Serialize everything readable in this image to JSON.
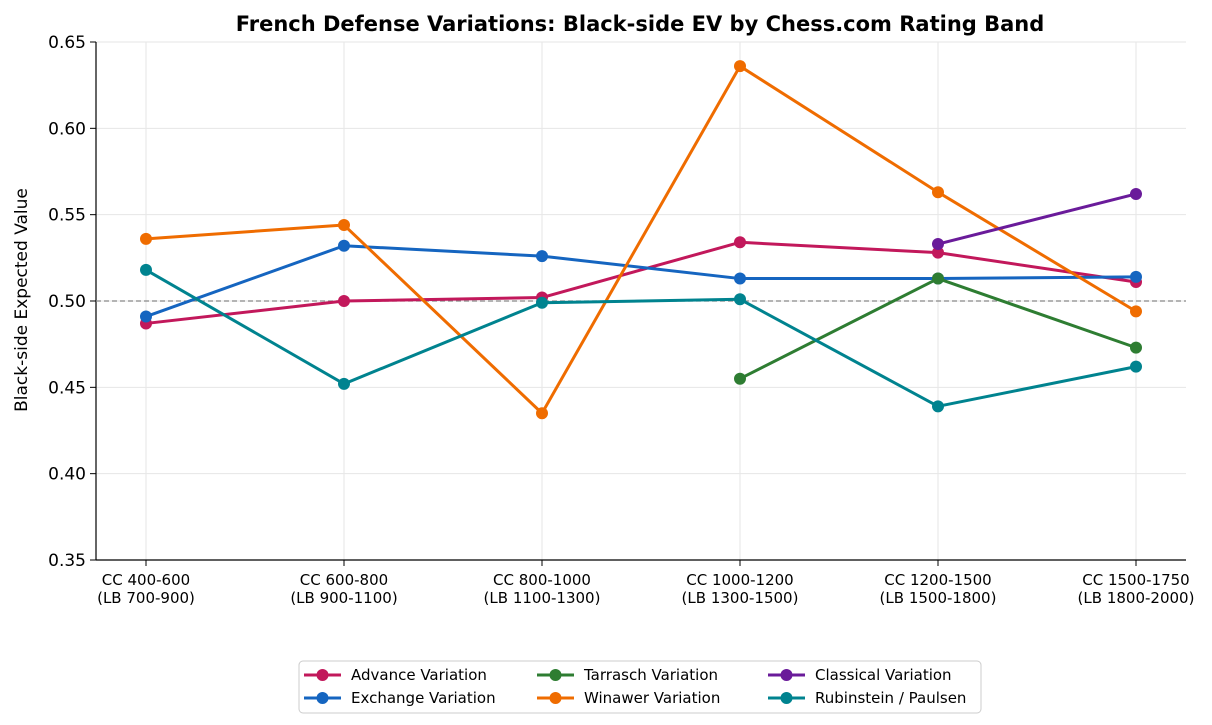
{
  "chart_data": {
    "type": "line",
    "title": "French Defense Variations: Black-side EV by Chess.com Rating Band",
    "xlabel": "",
    "ylabel": "Black-side Expected Value",
    "ylim": [
      0.35,
      0.65
    ],
    "yticks": [
      "0.35",
      "0.40",
      "0.45",
      "0.50",
      "0.55",
      "0.60",
      "0.65"
    ],
    "categories": [
      [
        "CC 400-600",
        "(LB 700-900)"
      ],
      [
        "CC 600-800",
        "(LB 900-1100)"
      ],
      [
        "CC 800-1000",
        "(LB 1100-1300)"
      ],
      [
        "CC 1000-1200",
        "(LB 1300-1500)"
      ],
      [
        "CC 1200-1500",
        "(LB 1500-1800)"
      ],
      [
        "CC 1500-1750",
        "(LB 1800-2000)"
      ]
    ],
    "reference_line": 0.5,
    "grid": true,
    "legend_position": "bottom-center",
    "series": [
      {
        "name": "Advance Variation",
        "color": "#c2185b",
        "values": [
          0.487,
          0.5,
          0.502,
          0.534,
          0.528,
          0.511
        ]
      },
      {
        "name": "Exchange Variation",
        "color": "#1565c0",
        "values": [
          0.491,
          0.532,
          0.526,
          0.513,
          0.513,
          0.514
        ]
      },
      {
        "name": "Tarrasch Variation",
        "color": "#2e7d32",
        "values": [
          null,
          null,
          null,
          0.455,
          0.513,
          0.473
        ]
      },
      {
        "name": "Winawer Variation",
        "color": "#ef6c00",
        "values": [
          0.536,
          0.544,
          0.435,
          0.636,
          0.563,
          0.494
        ]
      },
      {
        "name": "Classical Variation",
        "color": "#6a1b9a",
        "values": [
          null,
          null,
          null,
          null,
          0.533,
          0.562
        ]
      },
      {
        "name": "Rubinstein / Paulsen",
        "color": "#00838f",
        "values": [
          0.518,
          0.452,
          0.499,
          0.501,
          0.439,
          0.462
        ]
      }
    ]
  }
}
